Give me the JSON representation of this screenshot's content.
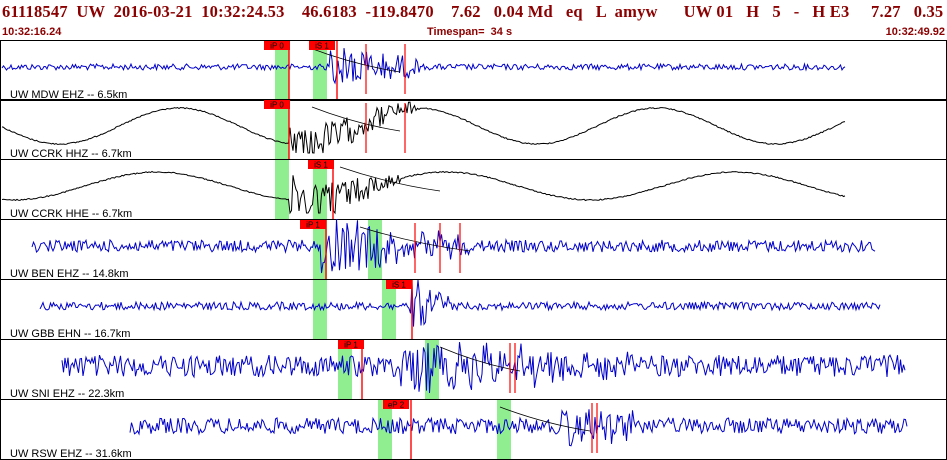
{
  "header": {
    "event_line": "61118547  UW  2016-03-21  10:32:24.53    46.6183  -119.8470    7.62   0.04 Md   eq   L  amyw      UW 01   H   5   -   H E3     7.27   0.35",
    "start_time": "10:32:16.24",
    "timespan": "Timespan=  34 s",
    "end_time": "10:32:49.92"
  },
  "colors": {
    "header_text": "#8b0000",
    "panel_border": "#000000",
    "pick_marker": "#ff0000",
    "pick_window": "#90ee90",
    "trace_blue": "#0000cc",
    "trace_black": "#000000"
  },
  "channels": [
    {
      "label": "UW MDW EHZ -- 6.5km",
      "trace_color": "blue",
      "pick_labels": [
        "iP 0",
        "iS 1"
      ]
    },
    {
      "label": "UW CCRK HHZ -- 6.7km",
      "trace_color": "black",
      "pick_labels": [
        "iP 0"
      ]
    },
    {
      "label": "UW CCRK HHE -- 6.7km",
      "trace_color": "black",
      "pick_labels": [
        "iS 1"
      ]
    },
    {
      "label": "UW BEN EHZ -- 14.8km",
      "trace_color": "blue",
      "pick_labels": [
        "iP 1"
      ]
    },
    {
      "label": "UW GBB EHN -- 16.7km",
      "trace_color": "blue",
      "pick_labels": [
        "iS 1"
      ]
    },
    {
      "label": "UW SNI EHZ -- 22.3km",
      "trace_color": "blue",
      "pick_labels": [
        "iP 1"
      ]
    },
    {
      "label": "UW RSW EHZ -- 31.6km",
      "trace_color": "blue",
      "pick_labels": [
        "eP 2"
      ]
    }
  ]
}
